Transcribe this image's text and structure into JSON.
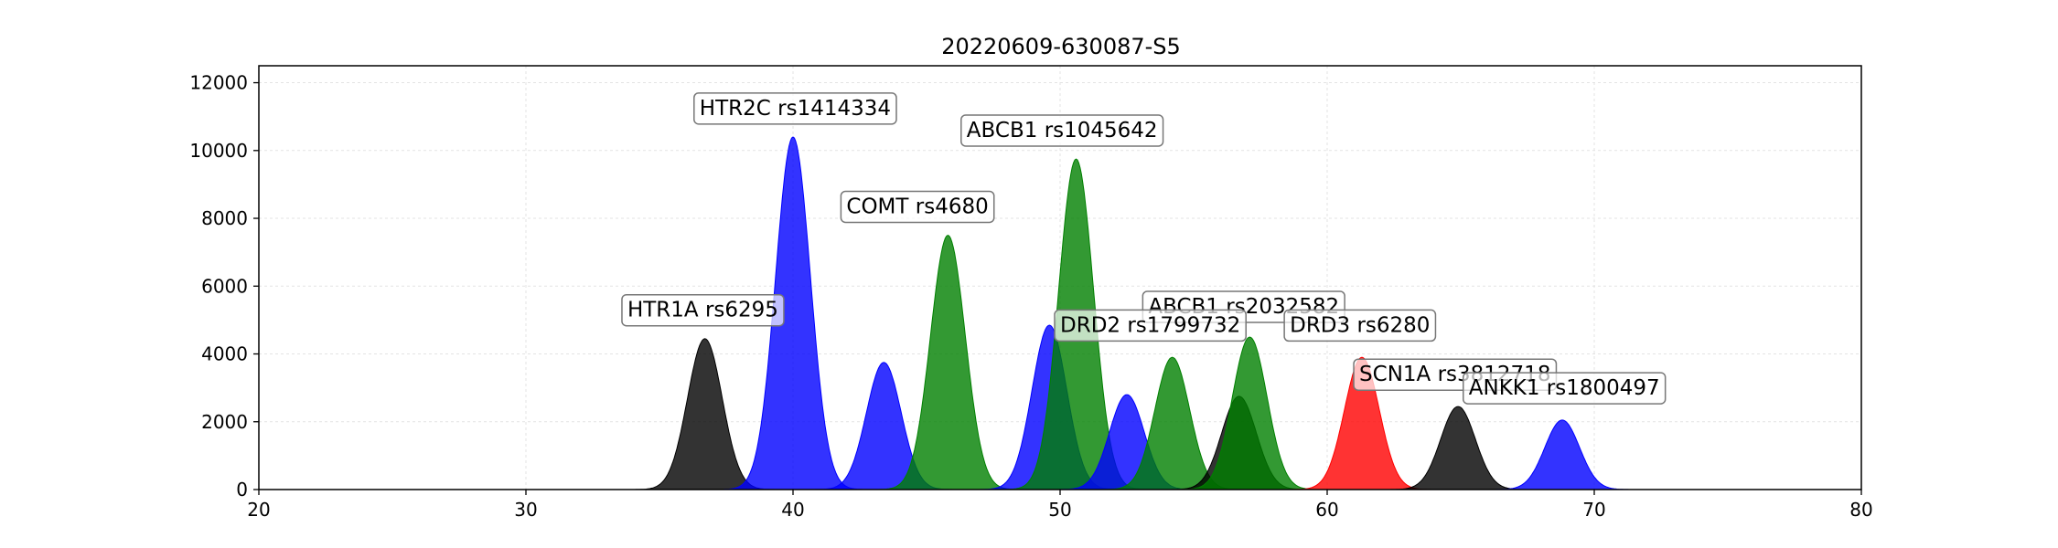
{
  "chart_data": {
    "type": "area",
    "title": "20220609-630087-S5",
    "xlabel": "",
    "ylabel": "",
    "xlim": [
      20,
      80
    ],
    "ylim": [
      0,
      12500
    ],
    "xticks": [
      20,
      30,
      40,
      50,
      60,
      70,
      80
    ],
    "yticks": [
      0,
      2000,
      4000,
      6000,
      8000,
      10000,
      12000
    ],
    "grid": true,
    "colors": {
      "black": "#000000",
      "blue": "#0000ff",
      "green": "#008000",
      "red": "#ff0000"
    },
    "peaks": [
      {
        "center": 36.7,
        "height": 4450,
        "color": "black"
      },
      {
        "center": 40.0,
        "height": 10400,
        "color": "blue"
      },
      {
        "center": 43.4,
        "height": 3750,
        "color": "blue"
      },
      {
        "center": 45.8,
        "height": 7500,
        "color": "green"
      },
      {
        "center": 49.6,
        "height": 4850,
        "color": "blue"
      },
      {
        "center": 50.6,
        "height": 9750,
        "color": "green"
      },
      {
        "center": 52.5,
        "height": 2800,
        "color": "blue"
      },
      {
        "center": 54.2,
        "height": 3900,
        "color": "green"
      },
      {
        "center": 56.7,
        "height": 2750,
        "color": "black"
      },
      {
        "center": 57.1,
        "height": 4500,
        "color": "green"
      },
      {
        "center": 61.3,
        "height": 3900,
        "color": "red"
      },
      {
        "center": 64.9,
        "height": 2450,
        "color": "black"
      },
      {
        "center": 68.8,
        "height": 2050,
        "color": "blue"
      }
    ],
    "annotations": [
      {
        "text": "HTR1A rs6295",
        "x": 33.8,
        "y": 5100
      },
      {
        "text": "HTR2C rs1414334",
        "x": 36.5,
        "y": 11050
      },
      {
        "text": "COMT rs4680",
        "x": 42.0,
        "y": 8150
      },
      {
        "text": "ABCB1 rs1045642",
        "x": 46.5,
        "y": 10400
      },
      {
        "text": "ABCB1 rs2032582",
        "x": 53.3,
        "y": 5200
      },
      {
        "text": "DRD2 rs1799732",
        "x": 50.0,
        "y": 4650
      },
      {
        "text": "DRD3 rs6280",
        "x": 58.6,
        "y": 4650
      },
      {
        "text": "SCN1A rs3812718",
        "x": 61.2,
        "y": 3200
      },
      {
        "text": "ANKK1 rs1800497",
        "x": 65.3,
        "y": 2800
      }
    ]
  }
}
